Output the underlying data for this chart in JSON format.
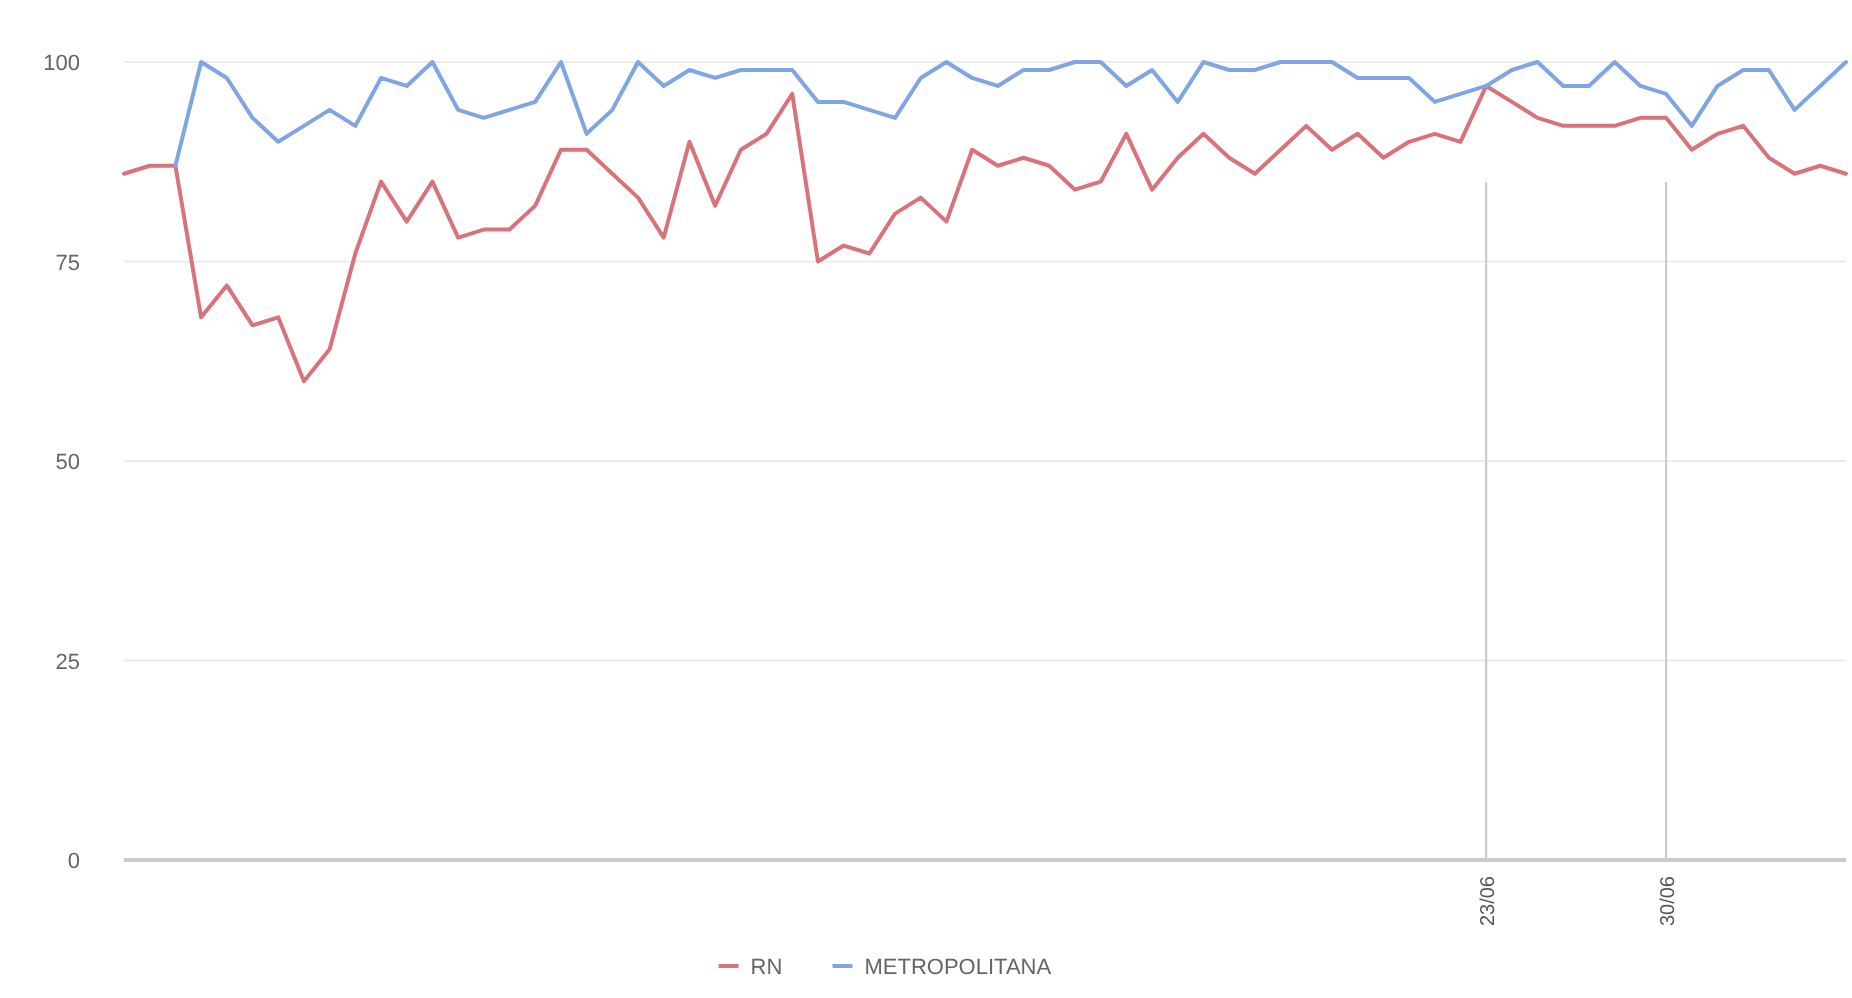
{
  "chart_data": {
    "type": "line",
    "categories": [
      null,
      null,
      null,
      null,
      null,
      null,
      null,
      null,
      null,
      null,
      null,
      null,
      null,
      null,
      null,
      null,
      null,
      null,
      null,
      null,
      null,
      null,
      null,
      null,
      null,
      null,
      null,
      null,
      null,
      null,
      null,
      null,
      null,
      null,
      null,
      null,
      null,
      null,
      null,
      null,
      null,
      null,
      null,
      null,
      null,
      null,
      null,
      null,
      null,
      null,
      null,
      null,
      null,
      "23/06",
      null,
      null,
      null,
      null,
      null,
      null,
      "30/06",
      null,
      null,
      null,
      null,
      null,
      null,
      null
    ],
    "series": [
      {
        "name": "RN",
        "color": "#d9737b",
        "values": [
          86,
          87,
          87,
          68,
          72,
          67,
          68,
          60,
          64,
          76,
          85,
          80,
          85,
          78,
          79,
          79,
          82,
          89,
          89,
          86,
          83,
          78,
          90,
          82,
          89,
          91,
          96,
          75,
          77,
          76,
          81,
          83,
          80,
          89,
          87,
          88,
          87,
          84,
          85,
          91,
          84,
          88,
          91,
          88,
          86,
          89,
          92,
          89,
          91,
          88,
          90,
          91,
          90,
          97,
          95,
          93,
          92,
          92,
          92,
          93,
          93,
          89,
          91,
          92,
          88,
          86,
          87,
          86
        ]
      },
      {
        "name": "METROPOLITANA",
        "color": "#7fa5e3",
        "values": [
          null,
          null,
          87,
          100,
          98,
          93,
          90,
          92,
          94,
          92,
          98,
          97,
          100,
          94,
          93,
          94,
          95,
          100,
          91,
          94,
          100,
          97,
          99,
          98,
          99,
          99,
          99,
          95,
          95,
          94,
          93,
          98,
          100,
          98,
          97,
          99,
          99,
          100,
          100,
          97,
          99,
          95,
          100,
          99,
          99,
          100,
          100,
          100,
          98,
          98,
          98,
          95,
          96,
          97,
          99,
          100,
          97,
          97,
          100,
          97,
          96,
          92,
          97,
          99,
          99,
          94,
          97,
          100
        ]
      }
    ],
    "ylim": [
      0,
      100
    ],
    "yticks": [
      0,
      25,
      50,
      75,
      100
    ],
    "grid": "y",
    "legend": "bottom",
    "marker": "none",
    "line_style": "solid",
    "ref_lines": [
      {
        "axis": "x",
        "value": "23/06",
        "color": "#c8c8c8"
      },
      {
        "axis": "x",
        "value": "30/06",
        "color": "#c8c8c8"
      }
    ]
  }
}
